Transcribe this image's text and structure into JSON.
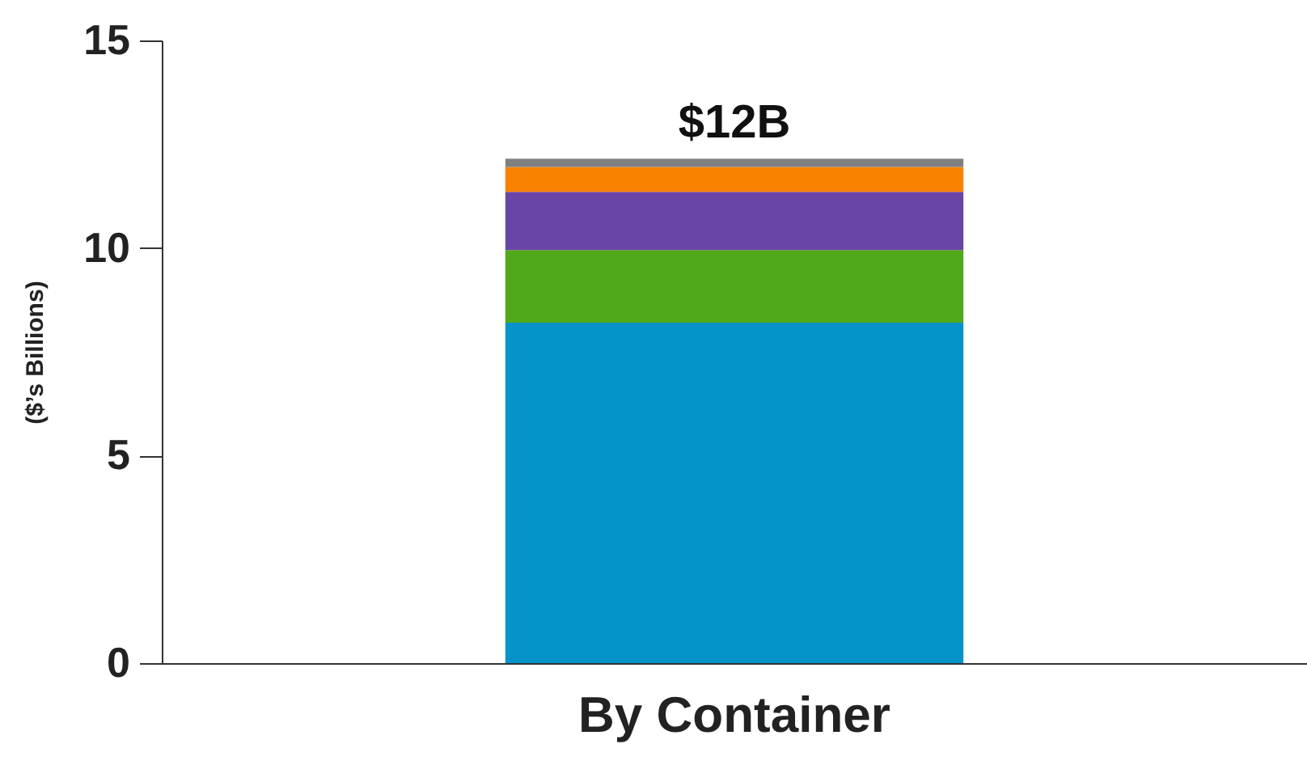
{
  "chart_data": {
    "type": "bar",
    "stacked": true,
    "ylabel": "($’s Billions)",
    "categories": [
      "By Container"
    ],
    "series": [
      {
        "color": "#0593c9",
        "values": [
          8.2
        ]
      },
      {
        "color": "#50a918",
        "values": [
          1.75
        ]
      },
      {
        "color": "#6a45a8",
        "values": [
          1.4
        ]
      },
      {
        "color": "#f98200",
        "values": [
          0.6
        ]
      },
      {
        "color": "#808080",
        "values": [
          0.2
        ]
      }
    ],
    "totals": [
      "$12B"
    ],
    "ylim": [
      0,
      15
    ],
    "yticks": [
      0,
      5,
      10,
      15
    ],
    "grid": false,
    "legend": false
  }
}
